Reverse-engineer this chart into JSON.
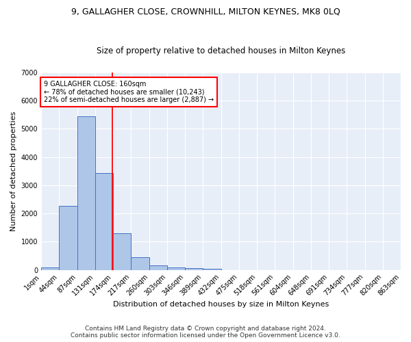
{
  "title1": "9, GALLAGHER CLOSE, CROWNHILL, MILTON KEYNES, MK8 0LQ",
  "title2": "Size of property relative to detached houses in Milton Keynes",
  "xlabel": "Distribution of detached houses by size in Milton Keynes",
  "ylabel": "Number of detached properties",
  "footnote": "Contains HM Land Registry data © Crown copyright and database right 2024.\nContains public sector information licensed under the Open Government Licence v3.0.",
  "bin_labels": [
    "1sqm",
    "44sqm",
    "87sqm",
    "131sqm",
    "174sqm",
    "217sqm",
    "260sqm",
    "303sqm",
    "346sqm",
    "389sqm",
    "432sqm",
    "475sqm",
    "518sqm",
    "561sqm",
    "604sqm",
    "648sqm",
    "691sqm",
    "734sqm",
    "777sqm",
    "820sqm",
    "863sqm"
  ],
  "bar_heights": [
    75,
    2280,
    5450,
    3420,
    1310,
    460,
    165,
    95,
    60,
    30,
    0,
    0,
    0,
    0,
    0,
    0,
    0,
    0,
    0,
    0
  ],
  "bar_color": "#aec6e8",
  "bar_edge_color": "#4472c4",
  "vline_x": 3.95,
  "vline_color": "red",
  "ylim": [
    0,
    7000
  ],
  "yticks": [
    0,
    1000,
    2000,
    3000,
    4000,
    5000,
    6000,
    7000
  ],
  "annotation_text": "9 GALLAGHER CLOSE: 160sqm\n← 78% of detached houses are smaller (10,243)\n22% of semi-detached houses are larger (2,887) →",
  "annotation_box_color": "#ffffff",
  "annotation_box_edge": "red",
  "bg_color": "#e8eef8",
  "title1_fontsize": 9,
  "title2_fontsize": 8.5,
  "footnote_fontsize": 6.5,
  "axis_label_fontsize": 8,
  "tick_fontsize": 7
}
